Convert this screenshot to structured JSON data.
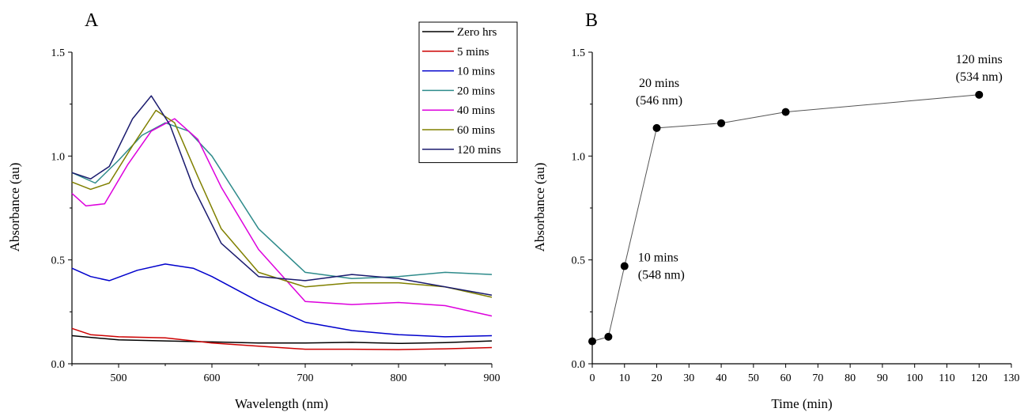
{
  "chart_data": [
    {
      "type": "line",
      "panel_label": "A",
      "xlabel": "Wavelength (nm)",
      "ylabel": "Absorbance (au)",
      "xlim": [
        450,
        900
      ],
      "ylim": [
        0.0,
        1.5
      ],
      "xticks": [
        "500",
        "600",
        "700",
        "800",
        "900"
      ],
      "yticks": [
        "0.0",
        "0.5",
        "1.0",
        "1.5"
      ],
      "legend_position": "top-right",
      "series": [
        {
          "name": "Zero hrs",
          "color": "#000000",
          "x": [
            450,
            500,
            550,
            600,
            650,
            700,
            750,
            800,
            850,
            900
          ],
          "y": [
            0.135,
            0.115,
            0.11,
            0.105,
            0.1,
            0.1,
            0.103,
            0.098,
            0.102,
            0.11
          ]
        },
        {
          "name": "5 mins",
          "color": "#cc0000",
          "x": [
            450,
            470,
            500,
            550,
            600,
            650,
            700,
            750,
            800,
            850,
            900
          ],
          "y": [
            0.17,
            0.14,
            0.13,
            0.125,
            0.1,
            0.085,
            0.07,
            0.07,
            0.068,
            0.072,
            0.078
          ]
        },
        {
          "name": "10 mins",
          "color": "#0000cc",
          "x": [
            450,
            470,
            490,
            520,
            550,
            580,
            600,
            650,
            700,
            750,
            800,
            850,
            900
          ],
          "y": [
            0.46,
            0.42,
            0.4,
            0.45,
            0.48,
            0.46,
            0.42,
            0.3,
            0.2,
            0.16,
            0.14,
            0.13,
            0.135
          ]
        },
        {
          "name": "20 mins",
          "color": "#2e8b8b",
          "x": [
            450,
            475,
            500,
            525,
            550,
            575,
            600,
            650,
            700,
            750,
            800,
            850,
            900
          ],
          "y": [
            0.92,
            0.87,
            0.98,
            1.1,
            1.16,
            1.12,
            1.0,
            0.65,
            0.44,
            0.41,
            0.42,
            0.44,
            0.43
          ]
        },
        {
          "name": "40 mins",
          "color": "#dd00dd",
          "x": [
            450,
            465,
            485,
            510,
            535,
            560,
            585,
            610,
            650,
            700,
            750,
            800,
            850,
            900
          ],
          "y": [
            0.82,
            0.76,
            0.77,
            0.96,
            1.12,
            1.18,
            1.08,
            0.85,
            0.55,
            0.3,
            0.285,
            0.295,
            0.28,
            0.23
          ]
        },
        {
          "name": "60 mins",
          "color": "#808000",
          "x": [
            450,
            470,
            490,
            515,
            540,
            560,
            585,
            610,
            650,
            700,
            750,
            800,
            850,
            900
          ],
          "y": [
            0.875,
            0.84,
            0.87,
            1.05,
            1.22,
            1.16,
            0.9,
            0.65,
            0.44,
            0.37,
            0.39,
            0.39,
            0.37,
            0.32
          ]
        },
        {
          "name": "120 mins",
          "color": "#1a1a6e",
          "x": [
            450,
            470,
            490,
            515,
            535,
            555,
            580,
            610,
            650,
            700,
            750,
            800,
            850,
            900
          ],
          "y": [
            0.92,
            0.89,
            0.95,
            1.18,
            1.29,
            1.15,
            0.85,
            0.58,
            0.42,
            0.4,
            0.43,
            0.41,
            0.37,
            0.33
          ]
        }
      ]
    },
    {
      "type": "scatter",
      "panel_label": "B",
      "xlabel": "Time (min)",
      "ylabel": "Absorbance (au)",
      "xlim": [
        0,
        130
      ],
      "ylim": [
        0.0,
        1.5
      ],
      "xticks": [
        "0",
        "10",
        "20",
        "30",
        "40",
        "50",
        "60",
        "70",
        "80",
        "90",
        "100",
        "110",
        "120",
        "130"
      ],
      "yticks": [
        "0.0",
        "0.5",
        "1.0",
        "1.5"
      ],
      "connected": true,
      "points": {
        "x": [
          0,
          5,
          10,
          20,
          40,
          60,
          120
        ],
        "y": [
          0.108,
          0.13,
          0.47,
          1.135,
          1.158,
          1.212,
          1.295
        ]
      },
      "annotations": [
        {
          "lines": [
            "10 mins",
            "(548 nm)"
          ],
          "x": 10,
          "y": 0.47
        },
        {
          "lines": [
            "20 mins",
            "(546 nm)"
          ],
          "x": 20,
          "y": 1.135
        },
        {
          "lines": [
            "120 mins",
            "(534 nm)"
          ],
          "x": 120,
          "y": 1.295
        }
      ]
    }
  ]
}
